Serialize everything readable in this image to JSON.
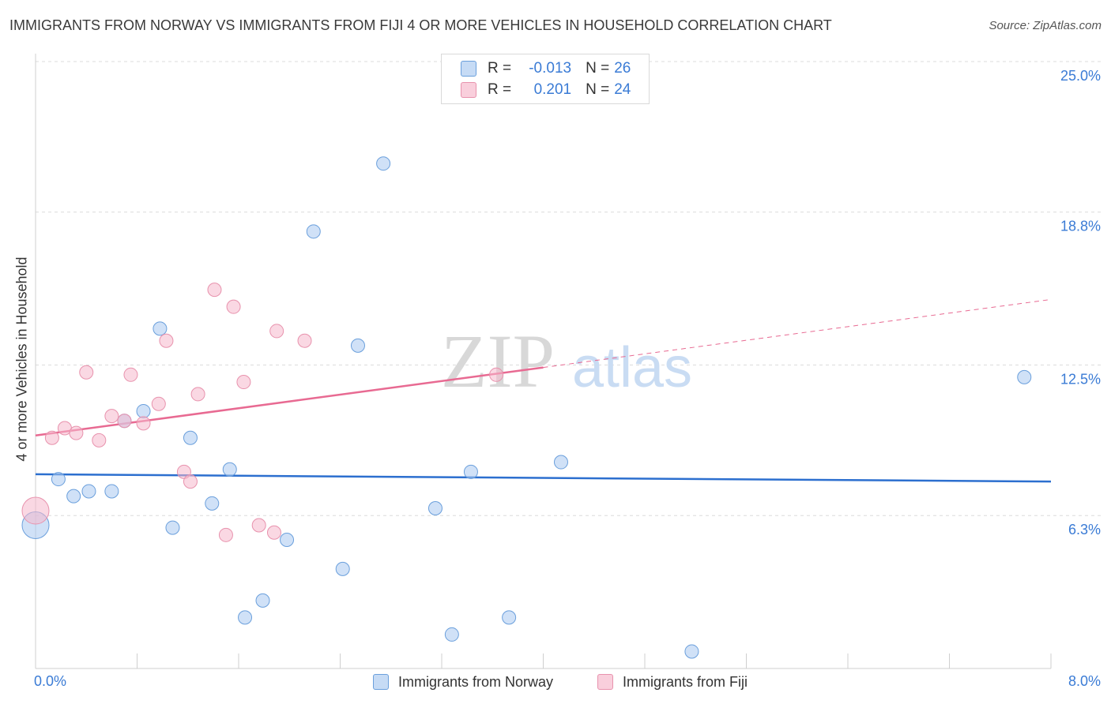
{
  "header": {
    "title": "IMMIGRANTS FROM NORWAY VS IMMIGRANTS FROM FIJI 4 OR MORE VEHICLES IN HOUSEHOLD CORRELATION CHART",
    "source": "Source: ZipAtlas.com"
  },
  "watermark": {
    "zip": "ZIP",
    "atlas": "atlas"
  },
  "stats": [
    {
      "r_label": "R =",
      "r_value": "-0.013",
      "n_label": "N =",
      "n_value": "26",
      "color": "#a9c8f0"
    },
    {
      "r_label": "R =",
      "r_value": "0.201",
      "n_label": "N =",
      "n_value": "24",
      "color": "#f5b8cc"
    }
  ],
  "legend": [
    {
      "label": "Immigrants from Norway",
      "color": "#a9c8f0"
    },
    {
      "label": "Immigrants from Fiji",
      "color": "#f5b8cc"
    }
  ],
  "chart_data": {
    "type": "scatter",
    "title": "IMMIGRANTS FROM NORWAY VS IMMIGRANTS FROM FIJI 4 OR MORE VEHICLES IN HOUSEHOLD CORRELATION CHART",
    "xlabel": "",
    "ylabel": "4 or more Vehicles in Household",
    "xlim": [
      0,
      8
    ],
    "ylim": [
      0,
      25
    ],
    "x_tick_labels": [
      "0.0%",
      "8.0%"
    ],
    "y_ticks": [
      6.3,
      12.5,
      18.8,
      25.0
    ],
    "y_tick_labels": [
      "6.3%",
      "12.5%",
      "18.8%",
      "25.0%"
    ],
    "grid": true,
    "legend_position": "bottom-center",
    "series": [
      {
        "name": "Immigrants from Norway",
        "color": "#a9c8f0",
        "stroke": "#6a9fdc",
        "trend": {
          "x": [
            0,
            8
          ],
          "y": [
            8.0,
            7.7
          ],
          "color": "#2c6fcf",
          "dashed_after": null
        },
        "points": [
          {
            "x": 0.0,
            "y": 5.9,
            "big": true
          },
          {
            "x": 0.18,
            "y": 7.8
          },
          {
            "x": 0.3,
            "y": 7.1
          },
          {
            "x": 0.42,
            "y": 7.3
          },
          {
            "x": 0.6,
            "y": 7.3
          },
          {
            "x": 0.7,
            "y": 10.2
          },
          {
            "x": 0.85,
            "y": 10.6
          },
          {
            "x": 0.98,
            "y": 14.0
          },
          {
            "x": 1.08,
            "y": 5.8
          },
          {
            "x": 1.22,
            "y": 9.5
          },
          {
            "x": 1.39,
            "y": 6.8
          },
          {
            "x": 1.53,
            "y": 8.2
          },
          {
            "x": 1.65,
            "y": 2.1
          },
          {
            "x": 1.79,
            "y": 2.8
          },
          {
            "x": 1.98,
            "y": 5.3
          },
          {
            "x": 2.19,
            "y": 18.0
          },
          {
            "x": 2.42,
            "y": 4.1
          },
          {
            "x": 2.54,
            "y": 13.3
          },
          {
            "x": 2.74,
            "y": 20.8
          },
          {
            "x": 3.15,
            "y": 6.6
          },
          {
            "x": 3.28,
            "y": 1.4
          },
          {
            "x": 3.43,
            "y": 8.1
          },
          {
            "x": 3.73,
            "y": 2.1
          },
          {
            "x": 4.14,
            "y": 8.5
          },
          {
            "x": 5.17,
            "y": 0.7
          },
          {
            "x": 7.79,
            "y": 12.0
          }
        ]
      },
      {
        "name": "Immigrants from Fiji",
        "color": "#f5b8cc",
        "stroke": "#e892ad",
        "trend": {
          "x": [
            0,
            4.0
          ],
          "y": [
            9.6,
            12.4
          ],
          "color": "#e86a92",
          "dashed_to": {
            "x": 8,
            "y": 15.2
          }
        },
        "points": [
          {
            "x": 0.0,
            "y": 6.5,
            "big": true
          },
          {
            "x": 0.13,
            "y": 9.5
          },
          {
            "x": 0.23,
            "y": 9.9
          },
          {
            "x": 0.32,
            "y": 9.7
          },
          {
            "x": 0.4,
            "y": 12.2
          },
          {
            "x": 0.5,
            "y": 9.4
          },
          {
            "x": 0.6,
            "y": 10.4
          },
          {
            "x": 0.7,
            "y": 10.2
          },
          {
            "x": 0.75,
            "y": 12.1
          },
          {
            "x": 0.85,
            "y": 10.1
          },
          {
            "x": 0.97,
            "y": 10.9
          },
          {
            "x": 1.03,
            "y": 13.5
          },
          {
            "x": 1.17,
            "y": 8.1
          },
          {
            "x": 1.22,
            "y": 7.7
          },
          {
            "x": 1.28,
            "y": 11.3
          },
          {
            "x": 1.41,
            "y": 15.6
          },
          {
            "x": 1.5,
            "y": 5.5
          },
          {
            "x": 1.56,
            "y": 14.9
          },
          {
            "x": 1.64,
            "y": 11.8
          },
          {
            "x": 1.76,
            "y": 5.9
          },
          {
            "x": 1.9,
            "y": 13.9
          },
          {
            "x": 1.88,
            "y": 5.6
          },
          {
            "x": 2.12,
            "y": 13.5
          },
          {
            "x": 3.63,
            "y": 12.1
          }
        ]
      }
    ]
  }
}
